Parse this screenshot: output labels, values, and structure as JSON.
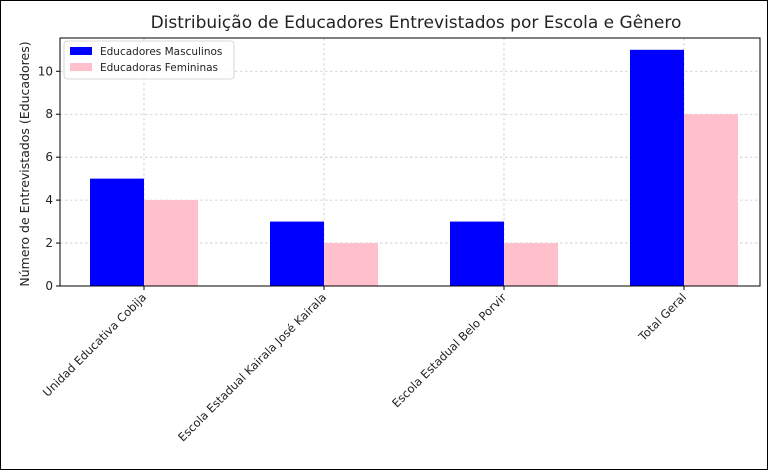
{
  "chart_data": {
    "type": "bar",
    "title": "Distribuição de Educadores Entrevistados por Escola e Gênero",
    "xlabel": "",
    "ylabel": "Número de Entrevistados (Educadores)",
    "categories": [
      "Unidad Educativa Cobija",
      "Escola Estadual Kairala José Kairala",
      "Escola Estadual Belo Porvir",
      "Total Geral"
    ],
    "series": [
      {
        "name": "Educadores Masculinos",
        "values": [
          5,
          3,
          3,
          11
        ],
        "color": "#0000ff"
      },
      {
        "name": "Educadoras Femininas",
        "values": [
          4,
          2,
          2,
          8
        ],
        "color": "#ffc0cb"
      }
    ],
    "yticks": [
      0,
      2,
      4,
      6,
      8,
      10
    ],
    "ylim": [
      0,
      11.55
    ],
    "grid": true,
    "legend": "top-left"
  }
}
